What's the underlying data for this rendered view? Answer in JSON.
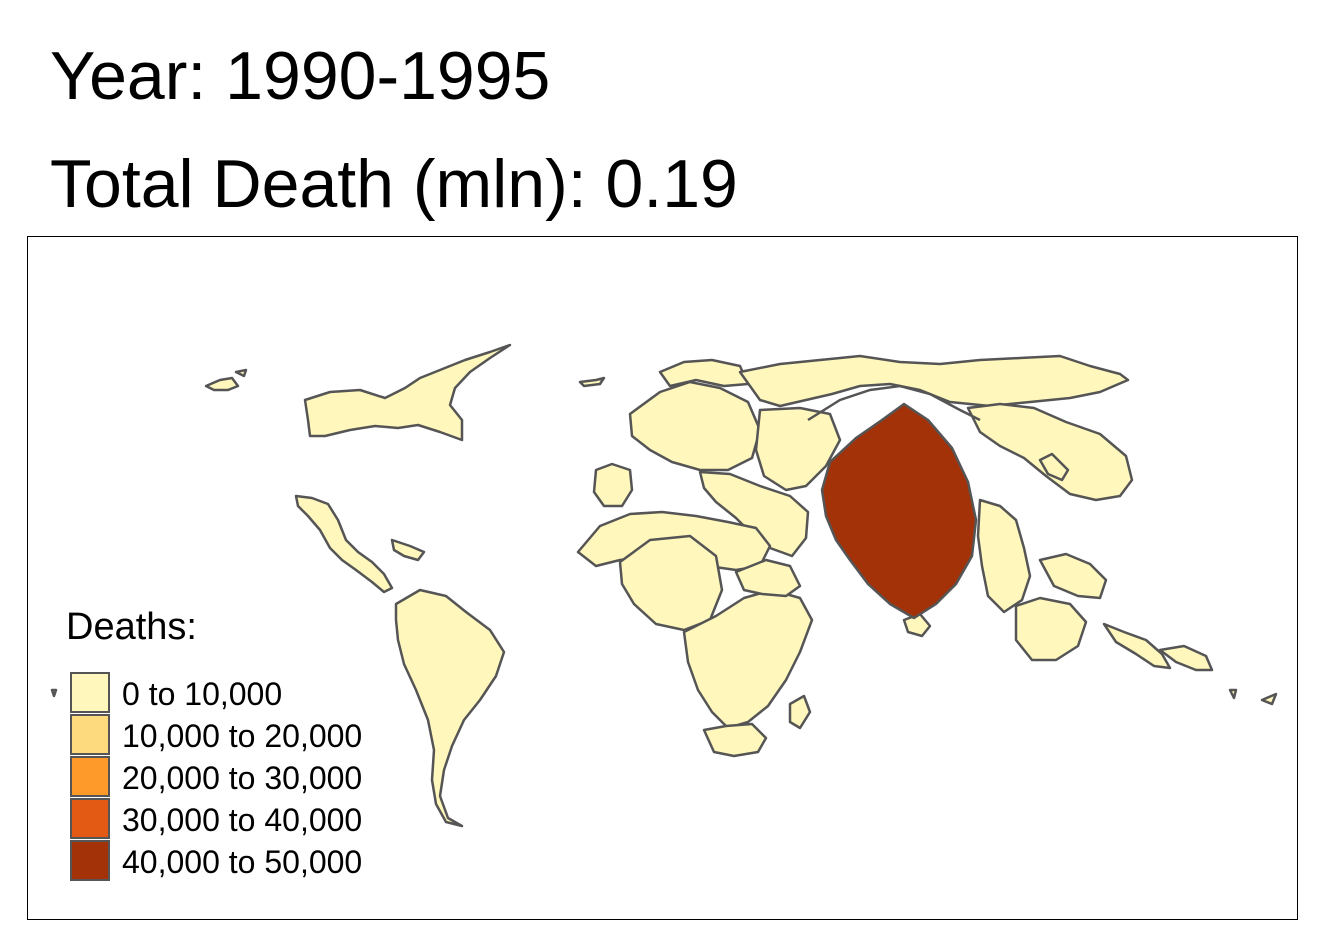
{
  "title": "Year: 1990-1995",
  "subtitle": "Total Death (mln): 0.19",
  "legend": {
    "title": "Deaths:",
    "items": [
      {
        "label": "0 to 10,000",
        "color": "#FFF7BC"
      },
      {
        "label": "10,000 to 20,000",
        "color": "#FEDA7E"
      },
      {
        "label": "20,000 to 30,000",
        "color": "#FE9A29"
      },
      {
        "label": "30,000 to 40,000",
        "color": "#E35A14"
      },
      {
        "label": "40,000 to 50,000",
        "color": "#A33209"
      }
    ]
  },
  "map": {
    "type": "cartogram",
    "border_color": "#555555",
    "highlight_class": "40,000 to 50,000"
  }
}
